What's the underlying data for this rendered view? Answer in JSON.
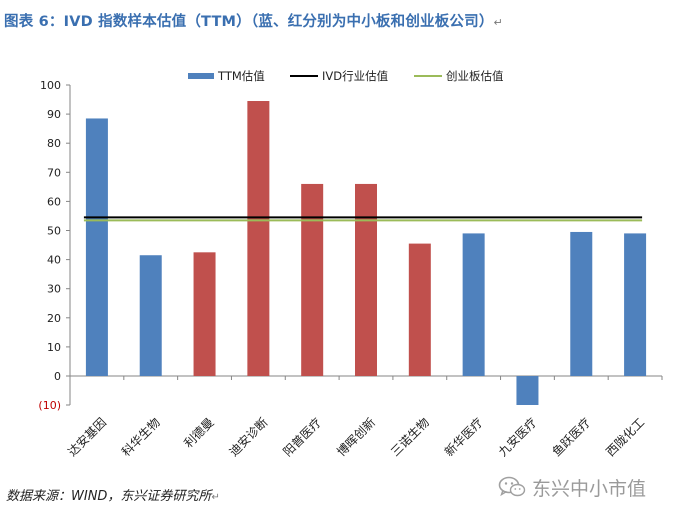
{
  "title": "图表 6：IVD 指数样本估值（TTM）（蓝、红分别为中小板和创业板公司）",
  "title_mark": "↵",
  "source": "数据来源：WIND，东兴证券研究所",
  "source_mark": "↵",
  "watermark": "东兴中小市值",
  "watermark_icon": "wechat-icon",
  "colors": {
    "sme_board": "#4f81bd",
    "chinext": "#c0504d",
    "ivd_line": "#000000",
    "chinext_line": "#9bbb59",
    "title": "#3a6fb0"
  },
  "chart_data": {
    "type": "bar",
    "categories": [
      "达安基因",
      "科华生物",
      "利德曼",
      "迪安诊断",
      "阳普医疗",
      "博晖创新",
      "三诺生物",
      "新华医疗",
      "九安医疗",
      "鱼跃医疗",
      "西陇化工"
    ],
    "series": [
      {
        "name": "TTM估值",
        "values": [
          88.5,
          41.5,
          42.5,
          94.5,
          66,
          66,
          45.5,
          49,
          -10,
          49.5,
          49
        ],
        "bar_colors": [
          "#4f81bd",
          "#4f81bd",
          "#c0504d",
          "#c0504d",
          "#c0504d",
          "#c0504d",
          "#c0504d",
          "#4f81bd",
          "#4f81bd",
          "#4f81bd",
          "#4f81bd"
        ]
      },
      {
        "name": "IVD行业估值",
        "type": "line",
        "value": 54.5,
        "color": "#000000"
      },
      {
        "name": "创业板估值",
        "type": "line",
        "value": 53.5,
        "color": "#9bbb59"
      }
    ],
    "ylim": [
      -10,
      100
    ],
    "yticks": [
      {
        "value": 100,
        "label": "100"
      },
      {
        "value": 90,
        "label": "90"
      },
      {
        "value": 80,
        "label": "80"
      },
      {
        "value": 70,
        "label": "70"
      },
      {
        "value": 60,
        "label": "60"
      },
      {
        "value": 50,
        "label": "50"
      },
      {
        "value": 40,
        "label": "40"
      },
      {
        "value": 30,
        "label": "30"
      },
      {
        "value": 20,
        "label": "20"
      },
      {
        "value": 10,
        "label": "10"
      },
      {
        "value": 0,
        "label": "0"
      },
      {
        "value": -10,
        "label": "(10)"
      }
    ],
    "negative_label_color": "#c00000",
    "grid": false,
    "legend_position": "top",
    "xlabel": "",
    "ylabel": ""
  }
}
